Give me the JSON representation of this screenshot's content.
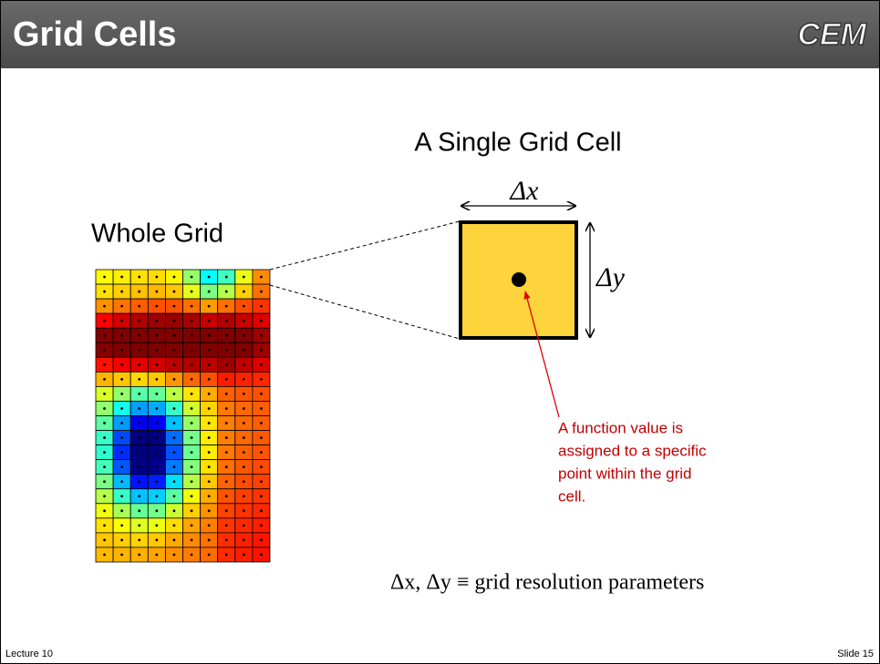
{
  "header": {
    "title": "Grid Cells",
    "logo": "CEM"
  },
  "whole_grid": {
    "label": "Whole Grid"
  },
  "single_cell": {
    "label": "A Single Grid Cell",
    "dx": "Δx",
    "dy": "Δy"
  },
  "annotation": {
    "lines": [
      "A function value is",
      "assigned to a specific",
      "point within the grid",
      "cell."
    ]
  },
  "formula": "Δx, Δy ≡ grid resolution parameters",
  "footer": {
    "left": "Lecture 10",
    "right": "Slide 15"
  }
}
